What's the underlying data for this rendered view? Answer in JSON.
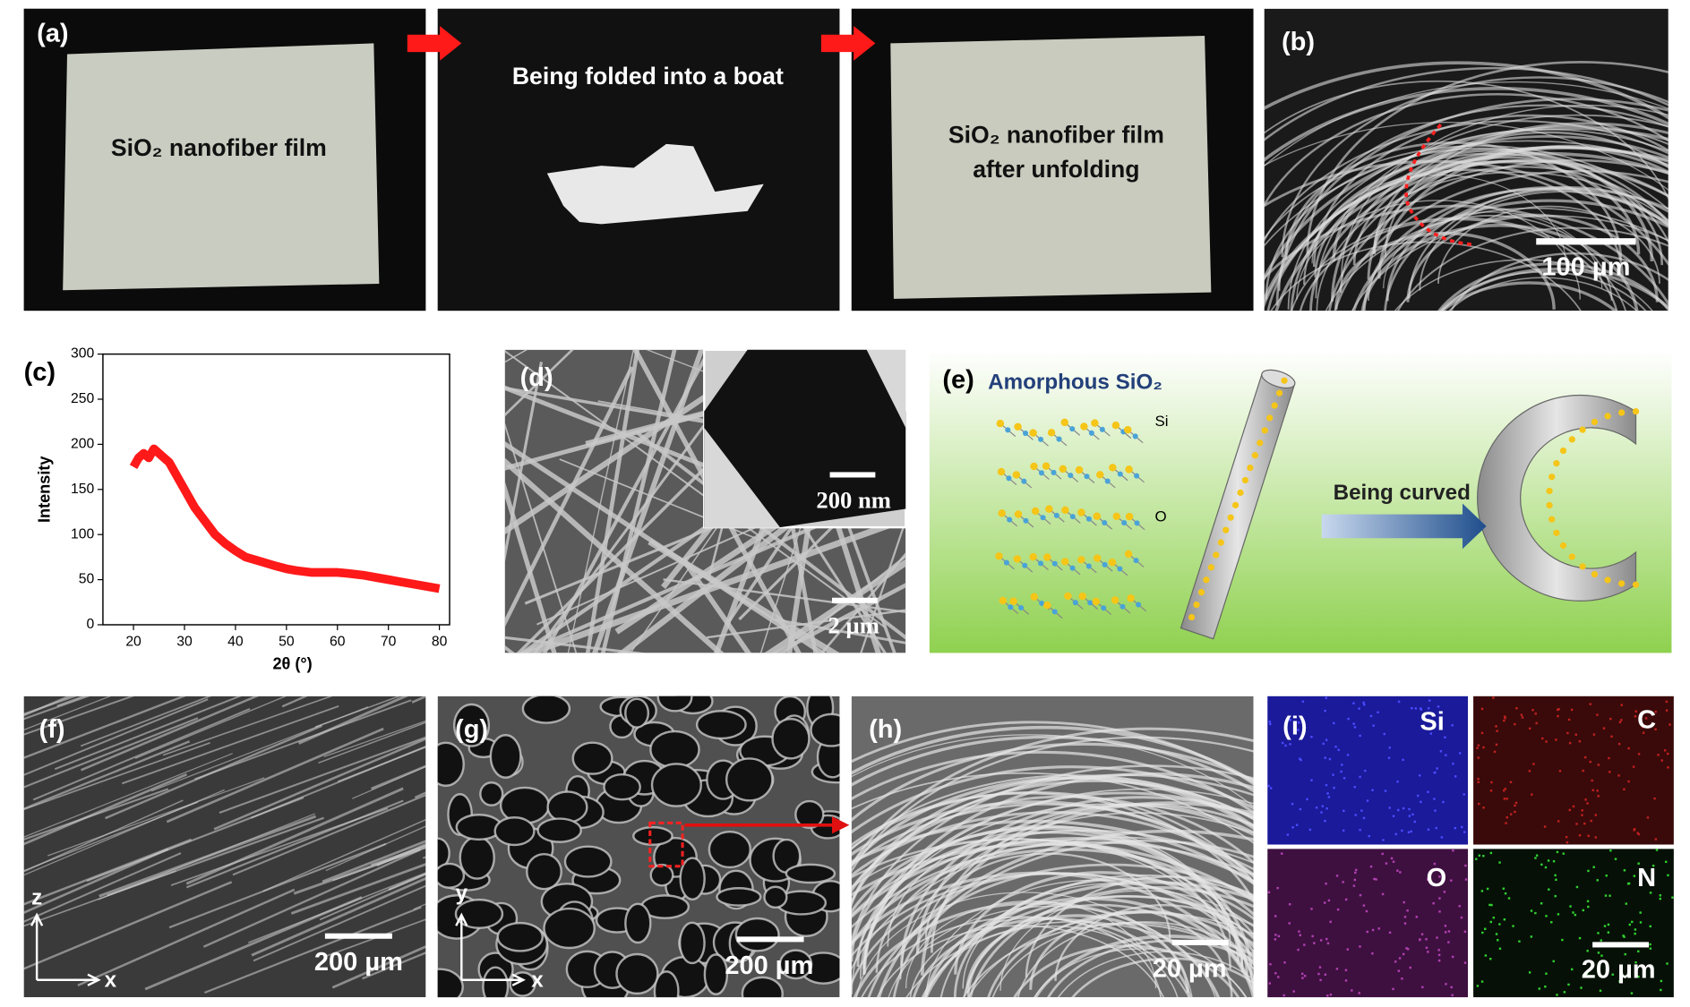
{
  "panels": {
    "a": {
      "label": "(a)",
      "film_caption": "SiO₂ nanofiber film",
      "fold_caption": "Being folded into a boat",
      "unfold_caption_1": "SiO₂ nanofiber film",
      "unfold_caption_2": "after unfolding"
    },
    "b": {
      "label": "(b)",
      "scale": "100 µm"
    },
    "c": {
      "label": "(c)"
    },
    "d": {
      "label": "(d)",
      "inset_scale": "200 nm",
      "scale": "2 µm"
    },
    "e": {
      "label": "(e)",
      "title": "Amorphous SiO₂",
      "atom_si": "Si",
      "atom_o": "O",
      "arrow_caption": "Being curved"
    },
    "f": {
      "label": "(f)",
      "scale": "200 µm",
      "axis_v": "z",
      "axis_h": "x"
    },
    "g": {
      "label": "(g)",
      "scale": "200 µm",
      "axis_v": "y",
      "axis_h": "x"
    },
    "h": {
      "label": "(h)",
      "scale": "20 µm"
    },
    "i": {
      "label": "(i)",
      "map_1": "Si",
      "map_2": "C",
      "map_3": "O",
      "map_4": "N",
      "scale": "20 µm"
    }
  },
  "chart_data": {
    "type": "line",
    "xlabel": "2θ (°)",
    "ylabel": "Intensity",
    "color": "#ff0000",
    "x": [
      20,
      21,
      22,
      23,
      24,
      25,
      26,
      27,
      28,
      29,
      30,
      32,
      34,
      36,
      38,
      40,
      42,
      45,
      48,
      50,
      52,
      55,
      58,
      60,
      62,
      65,
      68,
      70,
      72,
      75,
      78,
      80
    ],
    "values": [
      175,
      185,
      190,
      185,
      195,
      190,
      185,
      180,
      170,
      160,
      150,
      130,
      115,
      100,
      90,
      82,
      75,
      70,
      65,
      62,
      60,
      58,
      58,
      58,
      57,
      55,
      52,
      50,
      48,
      45,
      42,
      40
    ],
    "xlim": [
      14,
      82
    ],
    "xticks": [
      20,
      30,
      40,
      50,
      60,
      70,
      80
    ],
    "ylim": [
      0,
      300
    ],
    "yticks": [
      0,
      50,
      100,
      150,
      200,
      250,
      300
    ]
  }
}
